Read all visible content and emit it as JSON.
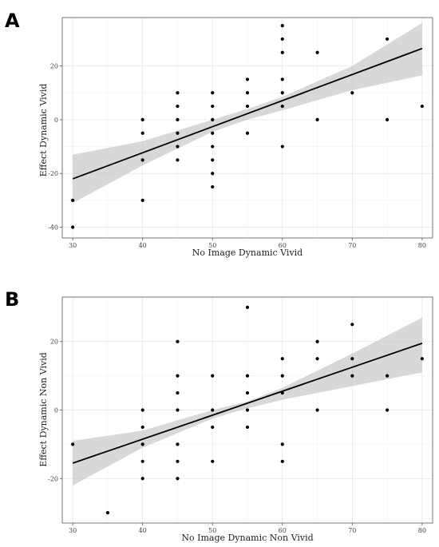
{
  "chart_data": [
    {
      "type": "scatter",
      "panel": "A",
      "xlabel": "No Image Dynamic Vivid",
      "ylabel": "Effect Dynamic Vivid",
      "xlim": [
        28.5,
        81.5
      ],
      "ylim": [
        -44,
        38
      ],
      "xticks": [
        30,
        40,
        50,
        60,
        70,
        80
      ],
      "yticks": [
        -40,
        -20,
        0,
        20
      ],
      "grid": true,
      "points": [
        [
          30,
          -30
        ],
        [
          30,
          -40
        ],
        [
          40,
          0
        ],
        [
          40,
          -5
        ],
        [
          40,
          -15
        ],
        [
          40,
          -30
        ],
        [
          45,
          10
        ],
        [
          45,
          5
        ],
        [
          45,
          0
        ],
        [
          45,
          -5
        ],
        [
          45,
          -10
        ],
        [
          45,
          -15
        ],
        [
          50,
          10
        ],
        [
          50,
          5
        ],
        [
          50,
          0
        ],
        [
          50,
          -5
        ],
        [
          50,
          -10
        ],
        [
          50,
          -15
        ],
        [
          50,
          -20
        ],
        [
          50,
          -25
        ],
        [
          55,
          15
        ],
        [
          55,
          10
        ],
        [
          55,
          5
        ],
        [
          55,
          -5
        ],
        [
          60,
          35
        ],
        [
          60,
          30
        ],
        [
          60,
          25
        ],
        [
          60,
          15
        ],
        [
          60,
          10
        ],
        [
          60,
          5
        ],
        [
          60,
          -10
        ],
        [
          65,
          25
        ],
        [
          65,
          0
        ],
        [
          70,
          10
        ],
        [
          75,
          30
        ],
        [
          75,
          0
        ],
        [
          80,
          5
        ]
      ],
      "fit": {
        "x0": 30,
        "y0": -22,
        "x1": 80,
        "y1": 26.5
      },
      "ribbon": {
        "x": [
          30,
          40,
          50,
          55,
          60,
          70,
          80
        ],
        "lower": [
          -31,
          -17,
          -4.5,
          0,
          3.5,
          11,
          16.5
        ],
        "upper": [
          -13,
          -8,
          0,
          4,
          8.5,
          20,
          36
        ]
      }
    },
    {
      "type": "scatter",
      "panel": "B",
      "xlabel": "No Image Dynamic Non Vivid",
      "ylabel": "Effect Dynamic Non Vivid",
      "xlim": [
        28.5,
        81.5
      ],
      "ylim": [
        -33,
        33
      ],
      "xticks": [
        30,
        40,
        50,
        60,
        70,
        80
      ],
      "yticks": [
        -20,
        0,
        20
      ],
      "grid": true,
      "points": [
        [
          30,
          -10
        ],
        [
          35,
          -30
        ],
        [
          40,
          0
        ],
        [
          40,
          -5
        ],
        [
          40,
          -10
        ],
        [
          40,
          -15
        ],
        [
          40,
          -20
        ],
        [
          45,
          20
        ],
        [
          45,
          10
        ],
        [
          45,
          5
        ],
        [
          45,
          0
        ],
        [
          45,
          -10
        ],
        [
          45,
          -15
        ],
        [
          45,
          -20
        ],
        [
          50,
          10
        ],
        [
          50,
          0
        ],
        [
          50,
          -5
        ],
        [
          50,
          -15
        ],
        [
          55,
          30
        ],
        [
          55,
          10
        ],
        [
          55,
          5
        ],
        [
          55,
          0
        ],
        [
          55,
          -5
        ],
        [
          60,
          15
        ],
        [
          60,
          10
        ],
        [
          60,
          5
        ],
        [
          60,
          -10
        ],
        [
          60,
          -15
        ],
        [
          65,
          20
        ],
        [
          65,
          15
        ],
        [
          65,
          0
        ],
        [
          70,
          25
        ],
        [
          70,
          15
        ],
        [
          70,
          10
        ],
        [
          75,
          10
        ],
        [
          75,
          0
        ],
        [
          80,
          15
        ]
      ],
      "fit": {
        "x0": 30,
        "y0": -15.5,
        "x1": 80,
        "y1": 19.5
      },
      "ribbon": {
        "x": [
          30,
          40,
          50,
          55,
          60,
          70,
          80
        ],
        "lower": [
          -22,
          -11,
          -2.5,
          0.5,
          3,
          7,
          11
        ],
        "upper": [
          -9,
          -6,
          0,
          2.5,
          6.5,
          16.5,
          27
        ]
      }
    }
  ],
  "panels": [
    {
      "letter": "A"
    },
    {
      "letter": "B"
    }
  ]
}
